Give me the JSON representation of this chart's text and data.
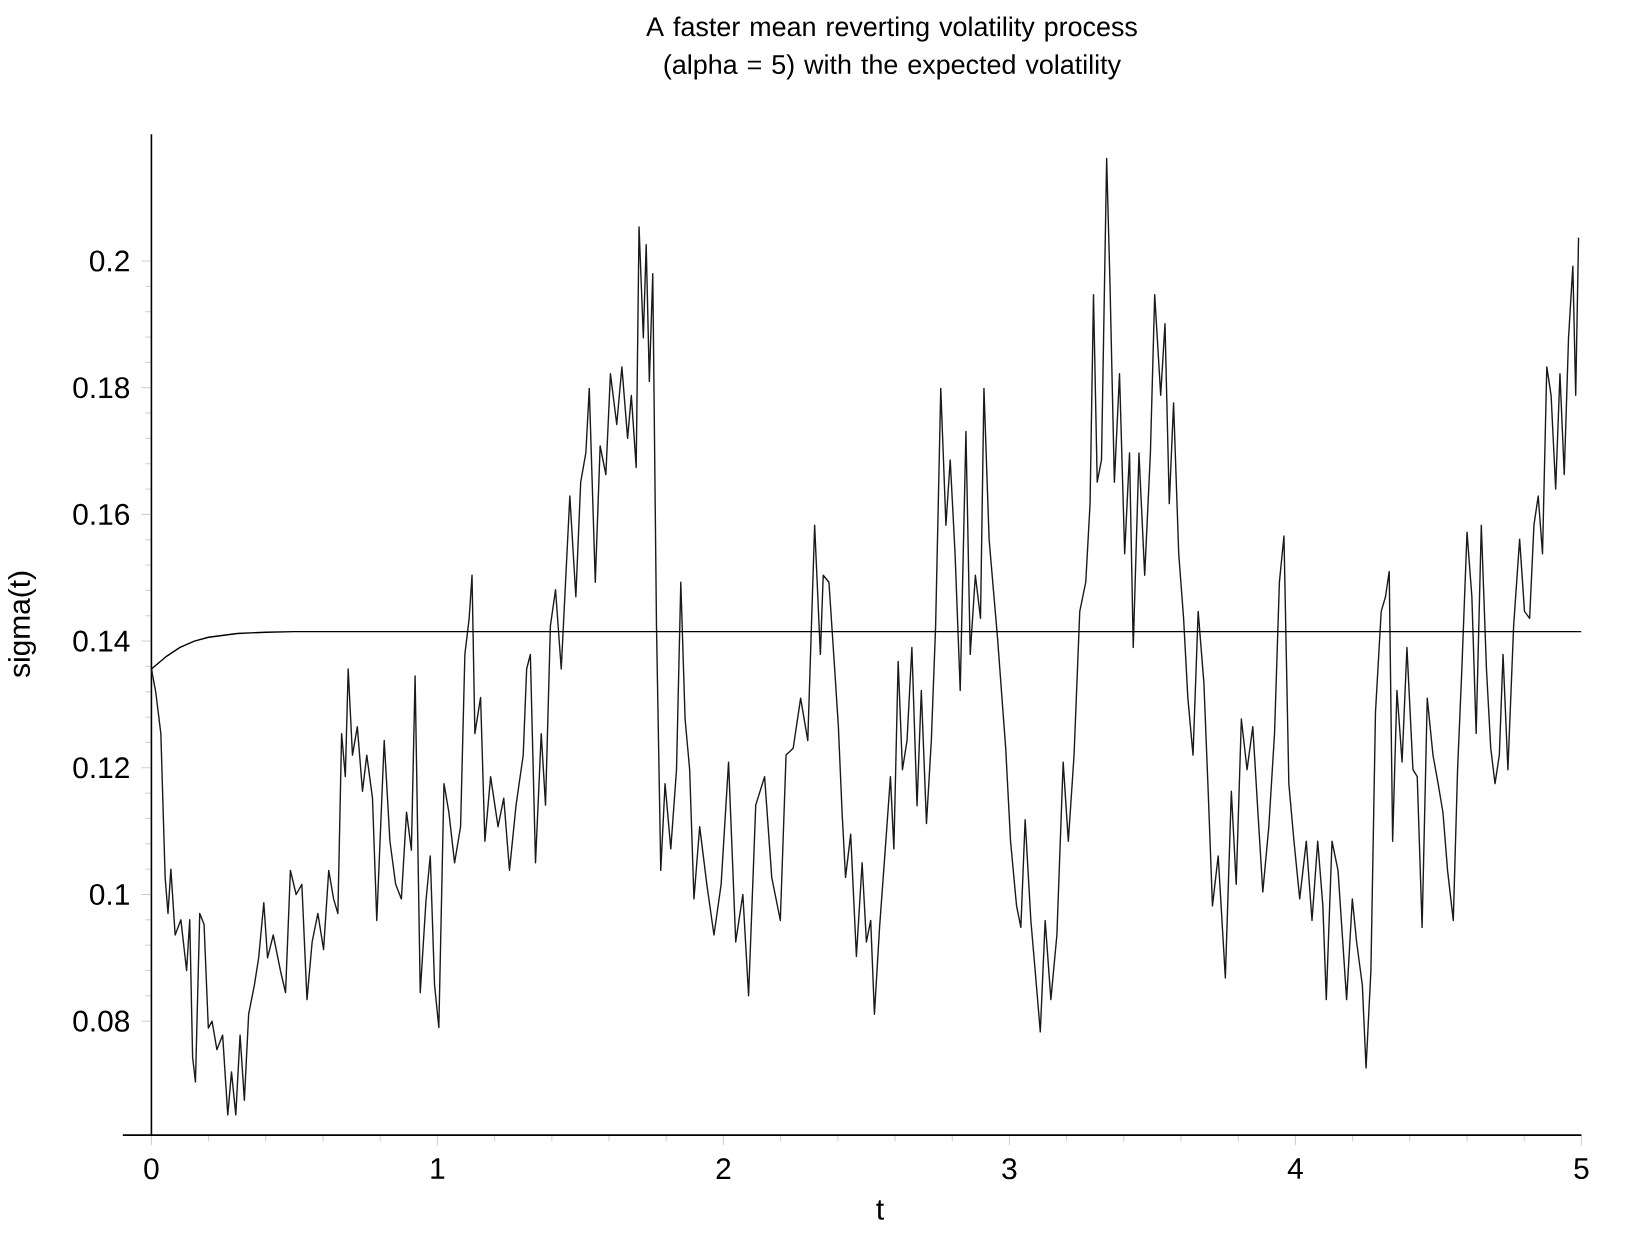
{
  "chart_data": {
    "type": "line",
    "title": "A faster mean reverting volatility process (alpha = 5) with the expected volatility",
    "xlabel": "t",
    "ylabel": "sigma(t)",
    "xlim": [
      -0.1,
      5
    ],
    "ylim": [
      0.062,
      0.22
    ],
    "xticks": [
      0,
      1,
      2,
      3,
      4,
      5
    ],
    "yticks": [
      0.08,
      0.1,
      0.12,
      0.14,
      0.16,
      0.18,
      0.2
    ],
    "series": [
      {
        "color": "#1a1a1a",
        "x": [
          0,
          0.015,
          0.033,
          0.048,
          0.058,
          0.068,
          0.083,
          0.103,
          0.123,
          0.134,
          0.144,
          0.154,
          0.169,
          0.184,
          0.199,
          0.212,
          0.229,
          0.249,
          0.267,
          0.28,
          0.295,
          0.31,
          0.325,
          0.34,
          0.36,
          0.375,
          0.393,
          0.406,
          0.426,
          0.451,
          0.469,
          0.486,
          0.506,
          0.526,
          0.544,
          0.562,
          0.582,
          0.602,
          0.62,
          0.637,
          0.652,
          0.665,
          0.678,
          0.688,
          0.703,
          0.72,
          0.738,
          0.753,
          0.773,
          0.788,
          0.814,
          0.834,
          0.854,
          0.874,
          0.892,
          0.909,
          0.922,
          0.94,
          0.96,
          0.975,
          0.99,
          1.005,
          1.023,
          1.04,
          1.06,
          1.081,
          1.096,
          1.111,
          1.121,
          1.131,
          1.151,
          1.166,
          1.186,
          1.212,
          1.232,
          1.252,
          1.275,
          1.3,
          1.312,
          1.325,
          1.343,
          1.363,
          1.378,
          1.395,
          1.413,
          1.433,
          1.448,
          1.463,
          1.484,
          1.501,
          1.519,
          1.531,
          1.552,
          1.569,
          1.589,
          1.605,
          1.627,
          1.645,
          1.665,
          1.678,
          1.695,
          1.705,
          1.72,
          1.73,
          1.741,
          1.753,
          1.766,
          1.781,
          1.796,
          1.816,
          1.836,
          1.851,
          1.866,
          1.882,
          1.897,
          1.917,
          1.942,
          1.967,
          1.992,
          2.018,
          2.043,
          2.068,
          2.088,
          2.113,
          2.144,
          2.169,
          2.199,
          2.219,
          2.244,
          2.27,
          2.295,
          2.319,
          2.339,
          2.349,
          2.369,
          2.389,
          2.402,
          2.415,
          2.427,
          2.445,
          2.465,
          2.485,
          2.5,
          2.515,
          2.528,
          2.546,
          2.566,
          2.584,
          2.596,
          2.611,
          2.626,
          2.642,
          2.659,
          2.677,
          2.692,
          2.71,
          2.727,
          2.742,
          2.76,
          2.778,
          2.793,
          2.81,
          2.828,
          2.848,
          2.863,
          2.881,
          2.899,
          2.911,
          2.929,
          2.944,
          2.959,
          2.974,
          2.987,
          3.004,
          3.025,
          3.04,
          3.055,
          3.075,
          3.09,
          3.108,
          3.125,
          3.145,
          3.166,
          3.188,
          3.206,
          3.226,
          3.246,
          3.267,
          3.282,
          3.294,
          3.307,
          3.322,
          3.34,
          3.352,
          3.367,
          3.385,
          3.403,
          3.42,
          3.433,
          3.453,
          3.473,
          3.493,
          3.508,
          3.529,
          3.544,
          3.559,
          3.574,
          3.592,
          3.609,
          3.624,
          3.642,
          3.66,
          3.68,
          3.695,
          3.71,
          3.73,
          3.755,
          3.776,
          3.793,
          3.811,
          3.831,
          3.851,
          3.869,
          3.886,
          3.907,
          3.927,
          3.944,
          3.96,
          3.977,
          3.995,
          4.015,
          4.038,
          4.058,
          4.078,
          4.096,
          4.108,
          4.128,
          4.149,
          4.164,
          4.179,
          4.199,
          4.214,
          4.234,
          4.247,
          4.264,
          4.28,
          4.3,
          4.315,
          4.328,
          4.34,
          4.355,
          4.373,
          4.39,
          4.411,
          4.426,
          4.443,
          4.461,
          4.481,
          4.499,
          4.516,
          4.532,
          4.552,
          4.567,
          4.582,
          4.6,
          4.617,
          4.632,
          4.65,
          4.668,
          4.683,
          4.698,
          4.713,
          4.726,
          4.743,
          4.763,
          4.784,
          4.801,
          4.819,
          4.834,
          4.849,
          4.864,
          4.879,
          4.894,
          4.91,
          4.925,
          4.94,
          4.955,
          4.97,
          4.98,
          4.99
        ],
        "values": [
          0.1356,
          0.132,
          0.1254,
          0.1027,
          0.097,
          0.104,
          0.0936,
          0.096,
          0.088,
          0.096,
          0.0743,
          0.0704,
          0.097,
          0.0953,
          0.0789,
          0.08,
          0.0755,
          0.0778,
          0.0652,
          0.072,
          0.0652,
          0.0778,
          0.0675,
          0.0811,
          0.0857,
          0.09,
          0.0987,
          0.09,
          0.0936,
          0.088,
          0.0845,
          0.1038,
          0.1,
          0.1016,
          0.0834,
          0.0925,
          0.097,
          0.0913,
          0.1038,
          0.0993,
          0.097,
          0.1254,
          0.1186,
          0.1356,
          0.122,
          0.1265,
          0.1163,
          0.122,
          0.1152,
          0.0959,
          0.1243,
          0.1084,
          0.1016,
          0.0993,
          0.113,
          0.107,
          0.1345,
          0.0845,
          0.099,
          0.1061,
          0.0857,
          0.079,
          0.1175,
          0.113,
          0.105,
          0.1107,
          0.1379,
          0.1436,
          0.1504,
          0.1254,
          0.1311,
          0.1084,
          0.1186,
          0.1107,
          0.1152,
          0.1038,
          0.1141,
          0.122,
          0.1356,
          0.1379,
          0.105,
          0.1254,
          0.1141,
          0.1424,
          0.1481,
          0.1356,
          0.1493,
          0.1629,
          0.147,
          0.1651,
          0.1697,
          0.1799,
          0.1493,
          0.1708,
          0.1663,
          0.1822,
          0.1742,
          0.1833,
          0.172,
          0.1788,
          0.1674,
          0.2054,
          0.1879,
          0.2026,
          0.181,
          0.198,
          0.1424,
          0.1038,
          0.1175,
          0.1072,
          0.1197,
          0.1493,
          0.1277,
          0.1197,
          0.0993,
          0.1107,
          0.1016,
          0.0936,
          0.1016,
          0.1209,
          0.0925,
          0.1,
          0.084,
          0.1141,
          0.1186,
          0.1027,
          0.0959,
          0.122,
          0.1231,
          0.131,
          0.1243,
          0.1583,
          0.1379,
          0.1504,
          0.1493,
          0.1356,
          0.1265,
          0.1129,
          0.1027,
          0.1095,
          0.0902,
          0.105,
          0.0925,
          0.0959,
          0.0811,
          0.0948,
          0.1072,
          0.1186,
          0.1072,
          0.1368,
          0.1197,
          0.1243,
          0.139,
          0.114,
          0.1322,
          0.1112,
          0.1243,
          0.1424,
          0.1799,
          0.1583,
          0.1686,
          0.1538,
          0.1322,
          0.1731,
          0.1379,
          0.1504,
          0.1436,
          0.1799,
          0.1561,
          0.1481,
          0.1402,
          0.131,
          0.1231,
          0.1084,
          0.0982,
          0.0948,
          0.1118,
          0.0959,
          0.088,
          0.0783,
          0.0959,
          0.0834,
          0.0936,
          0.1209,
          0.1084,
          0.122,
          0.1447,
          0.1493,
          0.1617,
          0.1947,
          0.1651,
          0.1686,
          0.2162,
          0.1958,
          0.1651,
          0.1822,
          0.1538,
          0.1697,
          0.139,
          0.1697,
          0.1504,
          0.1697,
          0.1947,
          0.1788,
          0.1901,
          0.1617,
          0.1776,
          0.1538,
          0.1436,
          0.131,
          0.122,
          0.1447,
          0.1334,
          0.1163,
          0.0982,
          0.1061,
          0.0868,
          0.1163,
          0.1016,
          0.1277,
          0.1197,
          0.1265,
          0.1129,
          0.1004,
          0.1107,
          0.1254,
          0.1493,
          0.1566,
          0.1175,
          0.1084,
          0.0993,
          0.1084,
          0.0959,
          0.1084,
          0.0982,
          0.0834,
          0.1084,
          0.1038,
          0.0936,
          0.0834,
          0.0993,
          0.0925,
          0.0857,
          0.0726,
          0.088,
          0.1288,
          0.1447,
          0.147,
          0.151,
          0.1084,
          0.1322,
          0.1209,
          0.139,
          0.1197,
          0.1186,
          0.0948,
          0.131,
          0.122,
          0.1175,
          0.1129,
          0.1038,
          0.0959,
          0.1197,
          0.1356,
          0.1572,
          0.147,
          0.1254,
          0.1583,
          0.1356,
          0.1231,
          0.1175,
          0.122,
          0.1379,
          0.1197,
          0.1424,
          0.1561,
          0.1447,
          0.1436,
          0.1583,
          0.1629,
          0.1538,
          0.1833,
          0.1788,
          0.164,
          0.1822,
          0.1663,
          0.1879,
          0.1992,
          0.1788,
          0.2037
        ]
      },
      {
        "color": "#000000",
        "x": [
          0,
          0.05,
          0.1,
          0.15,
          0.2,
          0.3,
          0.4,
          0.5,
          5
        ],
        "values": [
          0.1356,
          0.1375,
          0.139,
          0.14,
          0.1406,
          0.1412,
          0.1414,
          0.1415,
          0.1415
        ]
      }
    ]
  }
}
